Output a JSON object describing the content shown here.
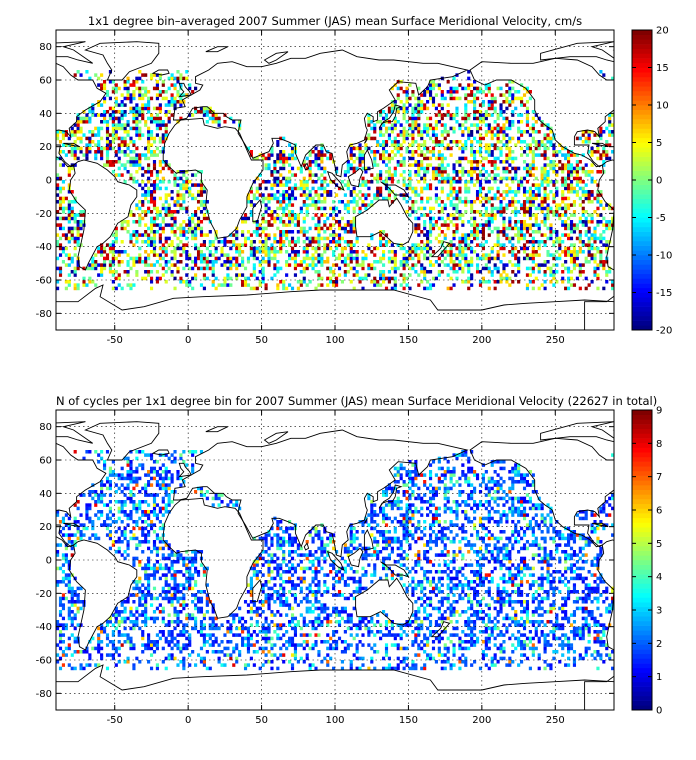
{
  "chart_data": [
    {
      "type": "heatmap",
      "title": "1x1 degree bin–averaged 2007 Summer (JAS) mean Surface Meridional Velocity, cm/s",
      "xlabel": "",
      "ylabel": "",
      "xlim": [
        -90,
        290
      ],
      "ylim": [
        -90,
        90
      ],
      "x_ticks": [
        -50,
        0,
        50,
        100,
        150,
        200,
        250
      ],
      "y_ticks": [
        80,
        60,
        40,
        20,
        0,
        -20,
        -40,
        -60,
        -80
      ],
      "grid": true,
      "colormap": "jet",
      "colorbar": {
        "min": -20,
        "max": 20,
        "ticks": [
          20,
          15,
          10,
          5,
          0,
          -5,
          -10,
          -15,
          -20
        ]
      },
      "value_distribution": {
        "kind": "signed",
        "low": -20,
        "high": 20,
        "density": 0.5
      }
    },
    {
      "type": "heatmap",
      "title": "N of cycles per 1x1 degree bin for 2007 Summer (JAS) mean Surface Meridional Velocity (22627 in total)",
      "xlabel": "",
      "ylabel": "",
      "xlim": [
        -90,
        290
      ],
      "ylim": [
        -90,
        90
      ],
      "x_ticks": [
        -50,
        0,
        50,
        100,
        150,
        200,
        250
      ],
      "y_ticks": [
        80,
        60,
        40,
        20,
        0,
        -20,
        -40,
        -60,
        -80
      ],
      "grid": true,
      "colormap": "jet",
      "colorbar": {
        "min": 0,
        "max": 9,
        "ticks": [
          9,
          8,
          7,
          6,
          5,
          4,
          3,
          2,
          1,
          0
        ]
      },
      "value_distribution": {
        "kind": "count",
        "low": 0,
        "high": 9,
        "density": 0.45
      }
    }
  ],
  "colors": {
    "background": "#ffffff",
    "axis": "#000000",
    "coast": "#000000",
    "grid": "#000000"
  }
}
